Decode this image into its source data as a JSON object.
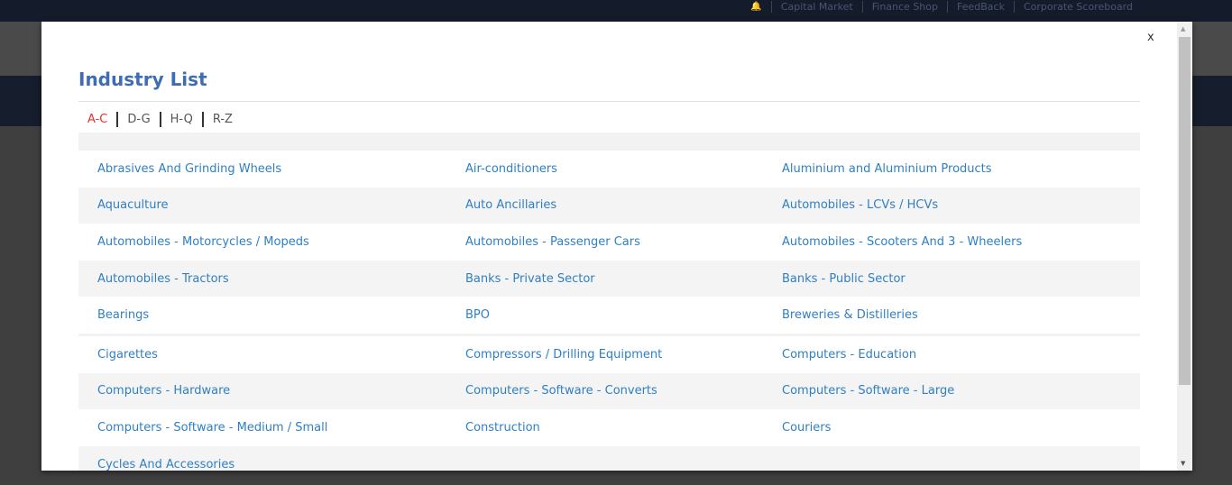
{
  "topnav": {
    "items": [
      "Capital Market",
      "Finance Shop",
      "FeedBack",
      "Corporate Scoreboard"
    ]
  },
  "modal": {
    "close_label": "x",
    "title": "Industry List",
    "tabs": [
      {
        "label": "A-C",
        "active": true
      },
      {
        "label": "D-G"
      },
      {
        "label": "H-Q"
      },
      {
        "label": "R-Z"
      }
    ],
    "rows": [
      [
        "Abrasives And Grinding Wheels",
        "Air-conditioners",
        "Aluminium and Aluminium Products"
      ],
      [
        "Aquaculture",
        "Auto Ancillaries",
        "Automobiles - LCVs / HCVs"
      ],
      [
        "Automobiles - Motorcycles / Mopeds",
        "Automobiles - Passenger Cars",
        "Automobiles - Scooters And 3 - Wheelers"
      ],
      [
        "Automobiles - Tractors",
        "Banks - Private Sector",
        "Banks - Public Sector"
      ],
      [
        "Bearings",
        "BPO",
        "Breweries & Distilleries"
      ],
      [
        "Cigarettes",
        "Compressors / Drilling Equipment",
        "Computers - Education"
      ],
      [
        "Computers - Hardware",
        "Computers - Software - Converts",
        "Computers - Software - Large"
      ],
      [
        "Computers - Software - Medium / Small",
        "Construction",
        "Couriers"
      ],
      [
        "Cycles And Accessories",
        "",
        ""
      ]
    ]
  },
  "colors": {
    "link": "#2f7fc4",
    "active_tab": "#e83030",
    "title": "#3f6db3"
  }
}
